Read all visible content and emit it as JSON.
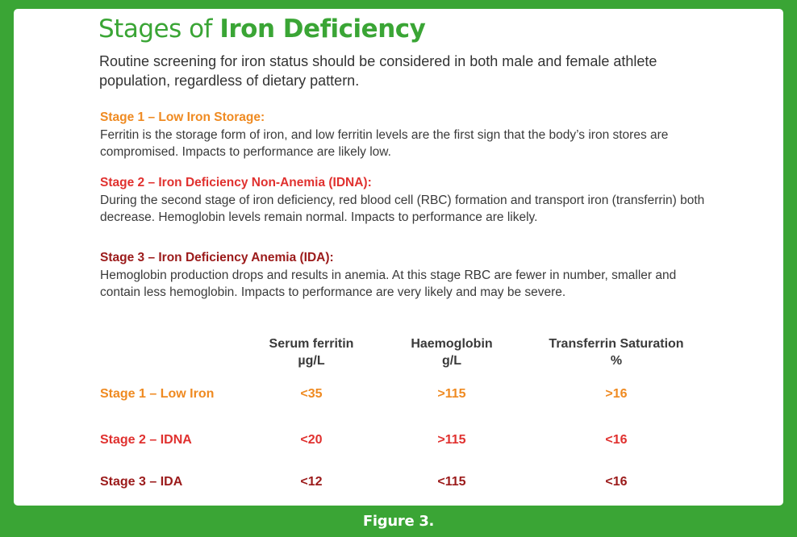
{
  "title": {
    "light": "Stages of ",
    "bold": "Iron Deficiency"
  },
  "intro": "Routine screening for iron status should be considered in both male and female athlete population, regardless of dietary pattern.",
  "stages": [
    {
      "heading": "Stage 1 – Low Iron Storage:",
      "body": "Ferritin is the storage form of iron, and low ferritin levels are the first sign that the body’s iron stores are compromised. Impacts to performance are likely low."
    },
    {
      "heading": "Stage 2 – Iron Deficiency Non-Anemia (IDNA):",
      "body": "During the second stage of iron deficiency, red blood cell (RBC) formation and transport iron (transferrin) both decrease. Hemoglobin levels remain normal. Impacts to performance are likely."
    },
    {
      "heading": "Stage 3 – Iron Deficiency Anemia (IDA):",
      "body": "Hemoglobin production drops and results in anemia. At this stage RBC are fewer in number, smaller and contain less hemoglobin. Impacts to performance are very likely and may be severe."
    }
  ],
  "table": {
    "columns": [
      {
        "name": "Serum ferritin",
        "unit": "µg/L"
      },
      {
        "name": "Haemoglobin",
        "unit": "g/L"
      },
      {
        "name": "Transferrin Saturation",
        "unit": "%"
      }
    ],
    "rows": [
      {
        "label": "Stage 1 –  Low Iron",
        "values": [
          "<35",
          ">115",
          ">16"
        ]
      },
      {
        "label": "Stage 2 – IDNA",
        "values": [
          "<20",
          ">115",
          "<16"
        ]
      },
      {
        "label": "Stage 3 – IDA",
        "values": [
          "<12",
          "<115",
          "<16"
        ]
      }
    ]
  },
  "caption": "Figure 3.",
  "colors": {
    "background": "#3aa535",
    "title": "#3aa535",
    "stage1": "#ef8a21",
    "stage2": "#e0312f",
    "stage3": "#9b1a1a",
    "text": "#3a3a3a"
  }
}
